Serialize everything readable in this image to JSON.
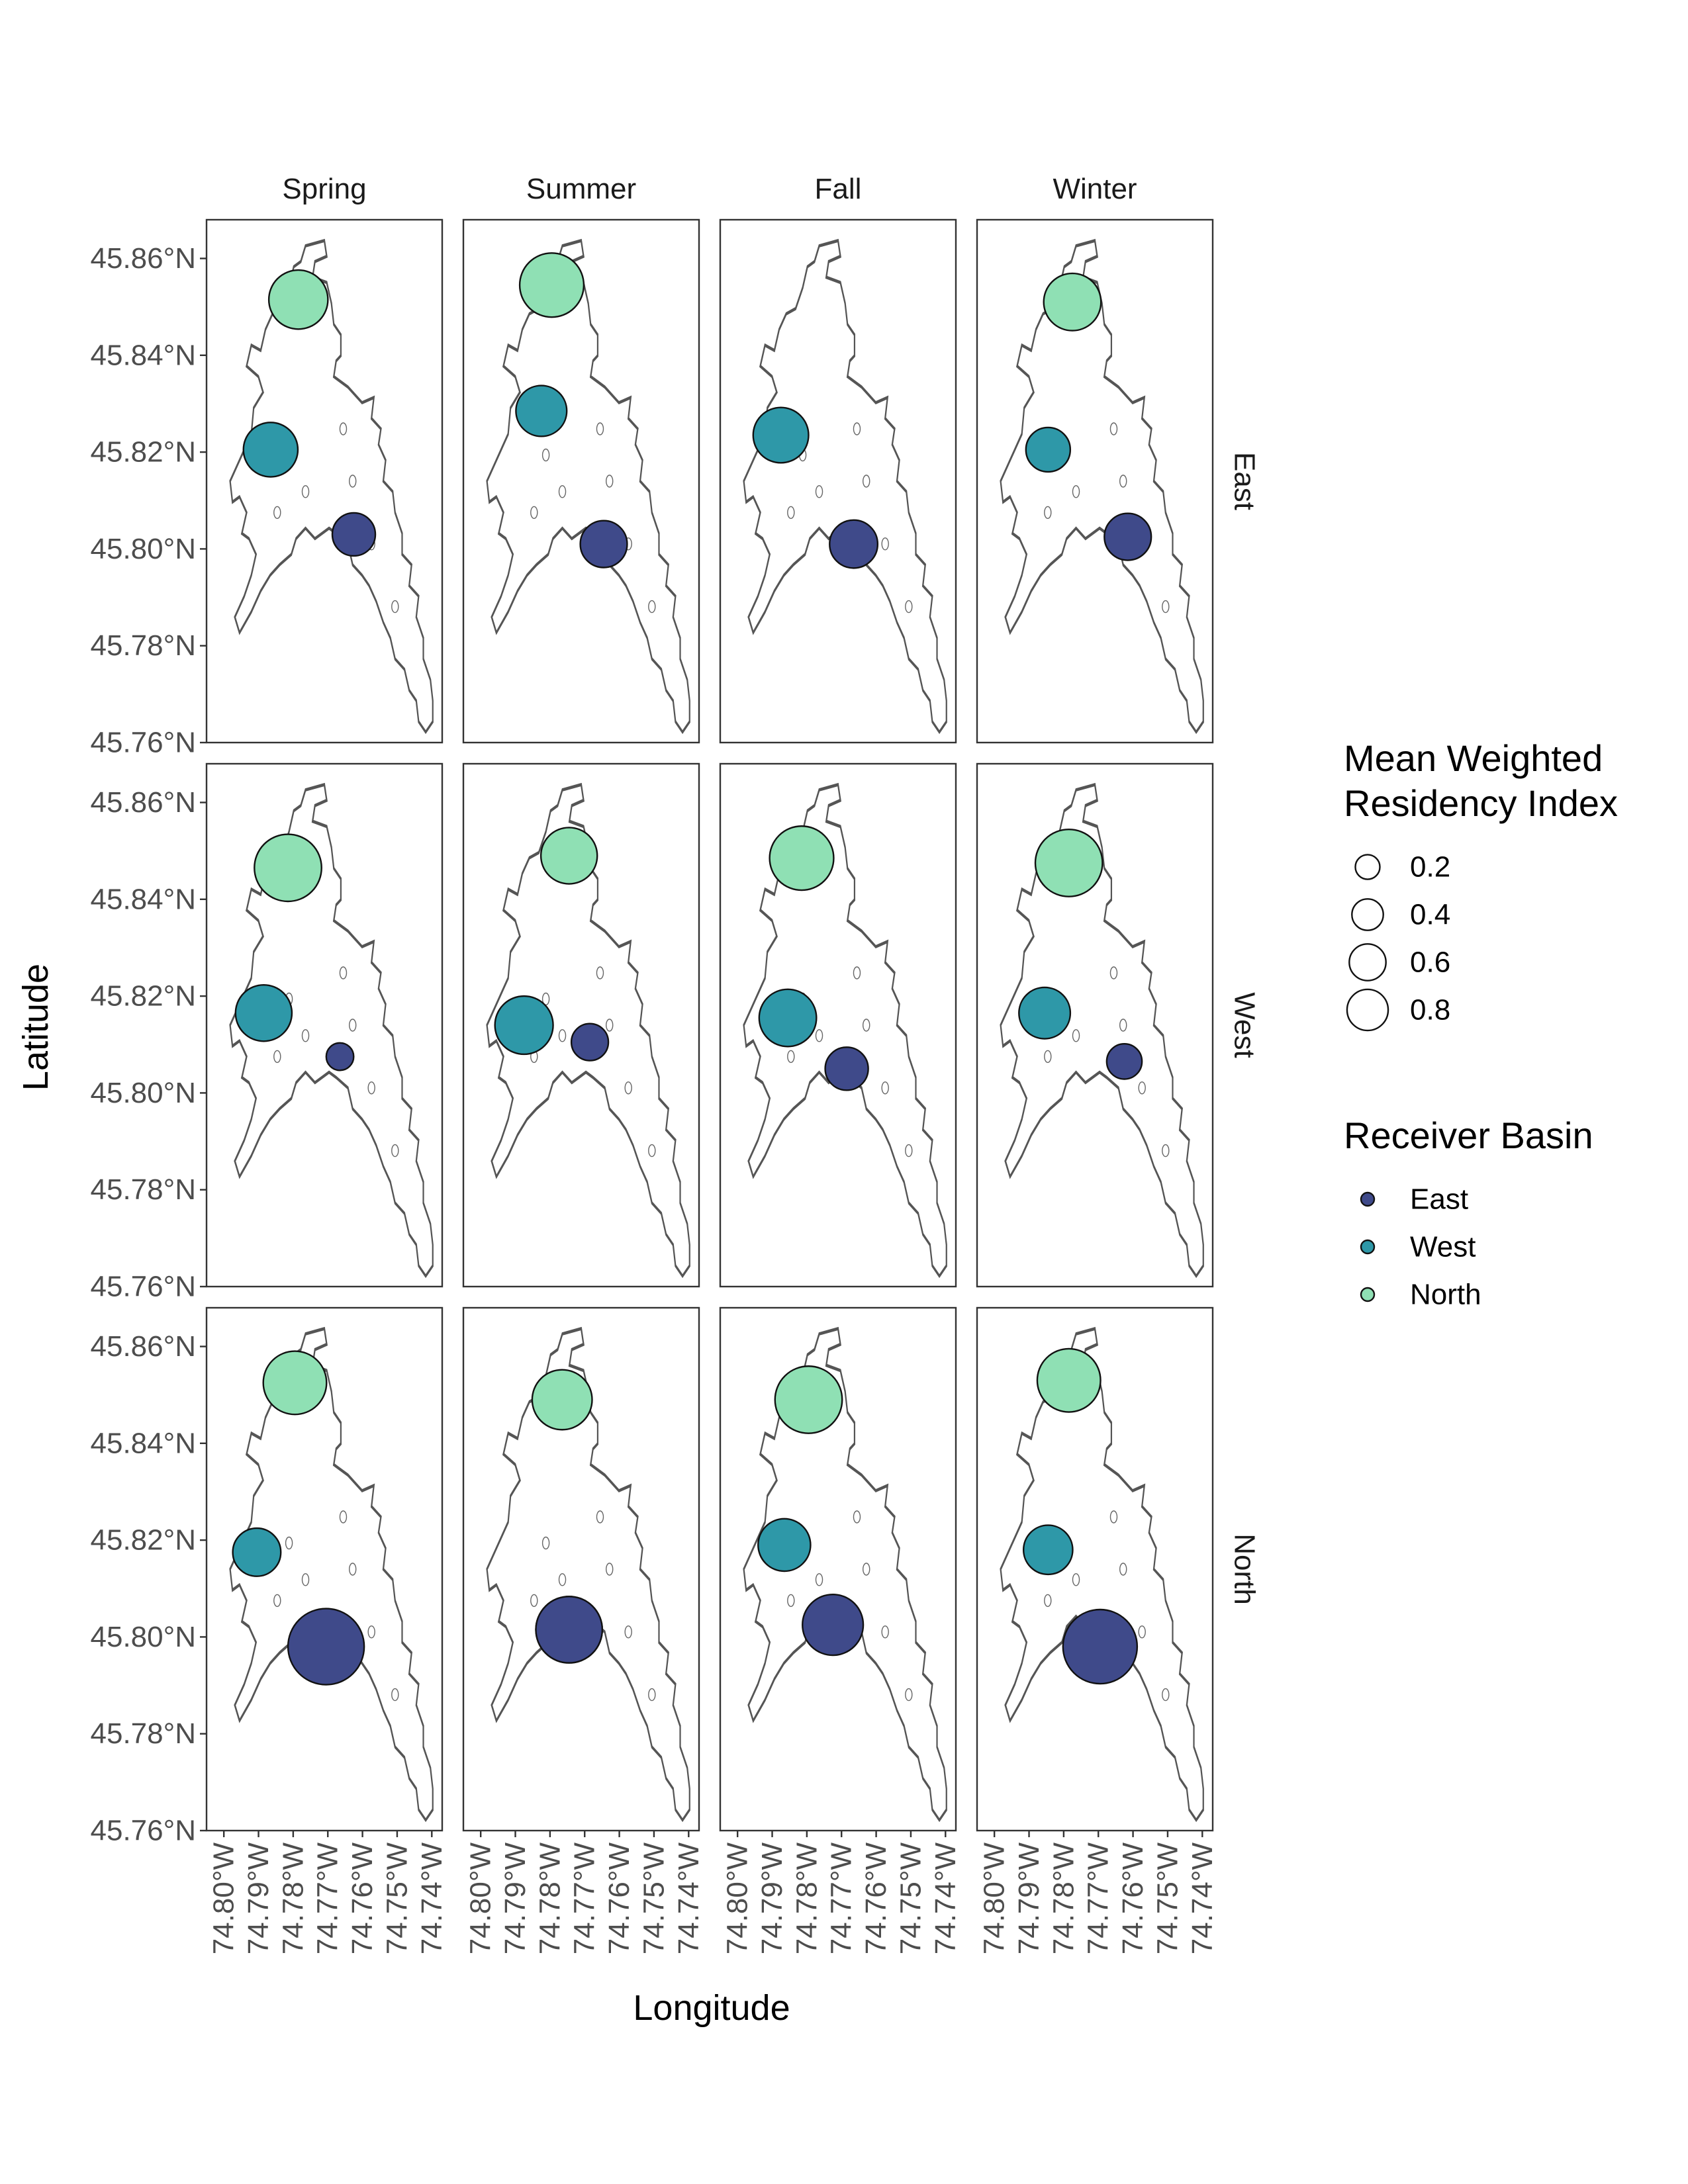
{
  "chart_data": {
    "type": "scatter",
    "kind": "faceted bubble map",
    "xlabel": "Longitude",
    "ylabel": "Latitude",
    "columns": [
      "Spring",
      "Summer",
      "Fall",
      "Winter"
    ],
    "rows": [
      "East",
      "West",
      "North"
    ],
    "xlim": [
      -74.805,
      -74.737
    ],
    "ylim": [
      45.76,
      45.868
    ],
    "x_ticks": [
      -74.8,
      -74.79,
      -74.78,
      -74.77,
      -74.76,
      -74.75,
      -74.74
    ],
    "x_tick_labels": [
      "74.80°W",
      "74.79°W",
      "74.78°W",
      "74.77°W",
      "74.76°W",
      "74.75°W",
      "74.74°W"
    ],
    "y_ticks": [
      45.76,
      45.78,
      45.8,
      45.82,
      45.84,
      45.86
    ],
    "y_tick_labels": [
      "45.76°N",
      "45.78°N",
      "45.80°N",
      "45.82°N",
      "45.84°N",
      "45.86°N"
    ],
    "size_legend": {
      "title_lines": [
        "Mean Weighted",
        "Residency Index"
      ],
      "values": [
        0.2,
        0.4,
        0.6,
        0.8
      ],
      "labels": [
        "0.2",
        "0.4",
        "0.6",
        "0.8"
      ]
    },
    "color_legend": {
      "title": "Receiver Basin",
      "entries": [
        {
          "name": "East",
          "color": "#3f4a8a"
        },
        {
          "name": "West",
          "color": "#2e98a8"
        },
        {
          "name": "North",
          "color": "#8fe0b4"
        }
      ]
    },
    "panels": [
      {
        "row": "East",
        "col": "Spring",
        "points": [
          {
            "basin": "North",
            "lon": -74.7785,
            "lat": 45.8515,
            "ri": 0.52
          },
          {
            "basin": "West",
            "lon": -74.7865,
            "lat": 45.8205,
            "ri": 0.42
          },
          {
            "basin": "East",
            "lon": -74.7625,
            "lat": 45.803,
            "ri": 0.22
          }
        ]
      },
      {
        "row": "East",
        "col": "Summer",
        "points": [
          {
            "basin": "North",
            "lon": -74.7795,
            "lat": 45.8545,
            "ri": 0.64
          },
          {
            "basin": "West",
            "lon": -74.7825,
            "lat": 45.8285,
            "ri": 0.35
          },
          {
            "basin": "East",
            "lon": -74.7645,
            "lat": 45.801,
            "ri": 0.28
          }
        ]
      },
      {
        "row": "East",
        "col": "Fall",
        "points": [
          {
            "basin": "West",
            "lon": -74.7875,
            "lat": 45.8235,
            "ri": 0.44
          },
          {
            "basin": "East",
            "lon": -74.7665,
            "lat": 45.801,
            "ri": 0.3
          }
        ]
      },
      {
        "row": "East",
        "col": "Winter",
        "points": [
          {
            "basin": "North",
            "lon": -74.7775,
            "lat": 45.851,
            "ri": 0.48
          },
          {
            "basin": "West",
            "lon": -74.7845,
            "lat": 45.8205,
            "ri": 0.24
          },
          {
            "basin": "East",
            "lon": -74.7615,
            "lat": 45.8025,
            "ri": 0.28
          }
        ]
      },
      {
        "row": "West",
        "col": "Spring",
        "points": [
          {
            "basin": "North",
            "lon": -74.7815,
            "lat": 45.8465,
            "ri": 0.72
          },
          {
            "basin": "West",
            "lon": -74.7885,
            "lat": 45.8165,
            "ri": 0.46
          },
          {
            "basin": "East",
            "lon": -74.7665,
            "lat": 45.8075,
            "ri": 0.05
          }
        ]
      },
      {
        "row": "West",
        "col": "Summer",
        "points": [
          {
            "basin": "North",
            "lon": -74.7745,
            "lat": 45.849,
            "ri": 0.46
          },
          {
            "basin": "West",
            "lon": -74.7875,
            "lat": 45.814,
            "ri": 0.5
          },
          {
            "basin": "East",
            "lon": -74.7685,
            "lat": 45.8105,
            "ri": 0.14
          }
        ]
      },
      {
        "row": "West",
        "col": "Fall",
        "points": [
          {
            "basin": "North",
            "lon": -74.7815,
            "lat": 45.8485,
            "ri": 0.64
          },
          {
            "basin": "West",
            "lon": -74.7855,
            "lat": 45.8155,
            "ri": 0.48
          },
          {
            "basin": "East",
            "lon": -74.7685,
            "lat": 45.805,
            "ri": 0.22
          }
        ]
      },
      {
        "row": "West",
        "col": "Winter",
        "points": [
          {
            "basin": "North",
            "lon": -74.7785,
            "lat": 45.8475,
            "ri": 0.72
          },
          {
            "basin": "West",
            "lon": -74.7855,
            "lat": 45.8165,
            "ri": 0.36
          },
          {
            "basin": "East",
            "lon": -74.7625,
            "lat": 45.8065,
            "ri": 0.12
          }
        ]
      },
      {
        "row": "North",
        "col": "Spring",
        "points": [
          {
            "basin": "North",
            "lon": -74.7795,
            "lat": 45.8525,
            "ri": 0.62
          },
          {
            "basin": "West",
            "lon": -74.7905,
            "lat": 45.8175,
            "ri": 0.3
          },
          {
            "basin": "East",
            "lon": -74.7705,
            "lat": 45.798,
            "ri": 0.98
          }
        ]
      },
      {
        "row": "North",
        "col": "Summer",
        "points": [
          {
            "basin": "North",
            "lon": -74.7765,
            "lat": 45.849,
            "ri": 0.54
          },
          {
            "basin": "West",
            "lon": -74.7745,
            "lat": 45.8015,
            "ri": 0.7
          },
          {
            "basin": "East",
            "lon": -74.7745,
            "lat": 45.8015,
            "ri": 0.7
          }
        ]
      },
      {
        "row": "North",
        "col": "Fall",
        "points": [
          {
            "basin": "North",
            "lon": -74.7795,
            "lat": 45.849,
            "ri": 0.72
          },
          {
            "basin": "West",
            "lon": -74.7865,
            "lat": 45.819,
            "ri": 0.38
          },
          {
            "basin": "East",
            "lon": -74.7725,
            "lat": 45.8025,
            "ri": 0.56
          }
        ]
      },
      {
        "row": "North",
        "col": "Winter",
        "points": [
          {
            "basin": "North",
            "lon": -74.7785,
            "lat": 45.853,
            "ri": 0.62
          },
          {
            "basin": "West",
            "lon": -74.7845,
            "lat": 45.818,
            "ri": 0.32
          },
          {
            "basin": "East",
            "lon": -74.7695,
            "lat": 45.798,
            "ri": 0.92
          }
        ]
      }
    ]
  }
}
